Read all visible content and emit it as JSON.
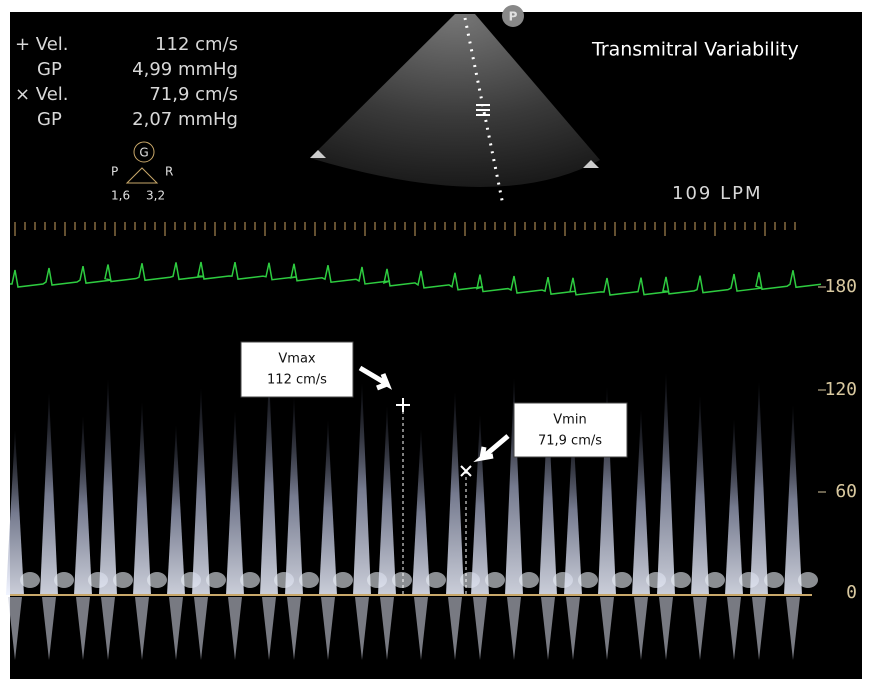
{
  "measurements": [
    {
      "label": "+ Vel.",
      "value": "112 cm/s"
    },
    {
      "label": "GP",
      "value": "4,99 mmHg"
    },
    {
      "label": "× Vel.",
      "value": "71,9 cm/s"
    },
    {
      "label": "GP",
      "value": "2,07 mmHg"
    }
  ],
  "probe": {
    "gain": "G",
    "left": "P",
    "right": "R",
    "left_value": "1,6",
    "right_value": "3,2"
  },
  "marker": "P",
  "title": "Transmitral Variability",
  "heart_rate": "109 LPM",
  "scale": [
    "180",
    "120",
    "60",
    "0"
  ],
  "annotations": [
    {
      "title": "Vmax",
      "value": "112 cm/s"
    },
    {
      "title": "Vmin",
      "value": "71,9 cm/s"
    }
  ]
}
